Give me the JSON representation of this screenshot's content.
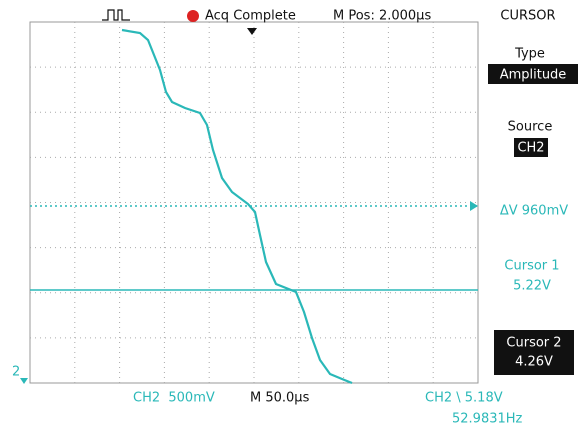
{
  "header": {
    "status": "Acq Complete",
    "position": "M Pos: 2.000µs",
    "menu_title": "CURSOR"
  },
  "menu": {
    "type_label": "Type",
    "type_value": "Amplitude",
    "source_label": "Source",
    "source_value": "CH2",
    "delta": "ΔV 960mV",
    "cursor1_label": "Cursor 1",
    "cursor1_value": "5.22V",
    "cursor2_label": "Cursor 2",
    "cursor2_value": "4.26V"
  },
  "footer": {
    "channel_scale": "CH2  500mV",
    "time_scale": "M 50.0µs",
    "trigger": "CH2 \\ 5.18V",
    "frequency": "52.9831Hz"
  },
  "channel_marker": "2"
}
